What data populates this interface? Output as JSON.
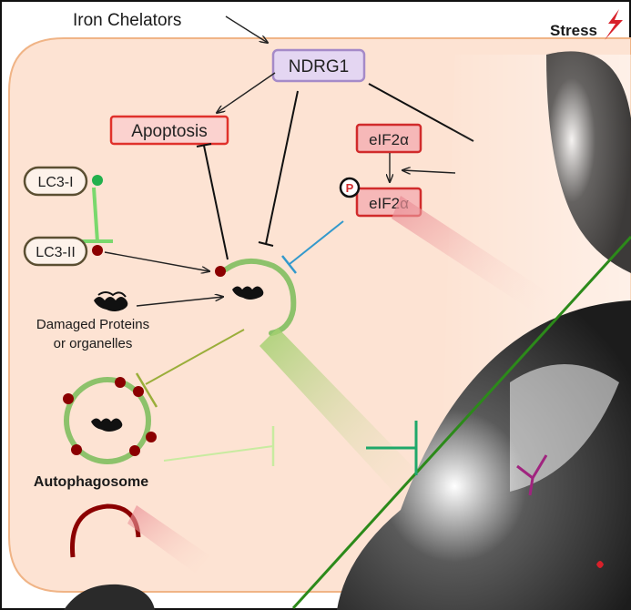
{
  "labels": {
    "iron_chelators": "Iron Chelators",
    "stress": "Stress",
    "ndrg1": "NDRG1",
    "apoptosis": "Apoptosis",
    "eif2a": "eIF2α",
    "p_eif2a": "eIF2α",
    "phospho": "P",
    "lc3_i": "LC3-I",
    "lc3_ii": "LC3-II",
    "damaged_line1": "Damaged Proteins",
    "damaged_line2": "or organelles",
    "autophagosome": "Autophagosome"
  },
  "colors": {
    "cell_fill": "#fde3d3",
    "cell_border": "#f0b486",
    "ndrg1_fill": "#e4d6f2",
    "ndrg1_border": "#a58ac8",
    "apoptosis_fill": "#fbd2cf",
    "apoptosis_border": "#e0312b",
    "eif_fill": "#f6b8b8",
    "eif_border": "#d12b2b",
    "lc3_border": "#5b4f32",
    "green_membrane": "#8dc26b",
    "dark_red": "#8b0000",
    "bright_green": "#22b04c",
    "blue_inhibit": "#3399cc",
    "olive_inhibit": "#9aae3a",
    "light_green_inhibit": "#c8eba0",
    "stress_red": "#d8202a",
    "dark_shape": "#2b2b2b",
    "diagonal_line": "#2c8a1a",
    "teal_inhibit": "#1fa86a",
    "magenta_mark": "#a0247f"
  },
  "icons": [
    "lightning-bolt-icon",
    "phosphate-icon",
    "protein-aggregate-icon"
  ]
}
